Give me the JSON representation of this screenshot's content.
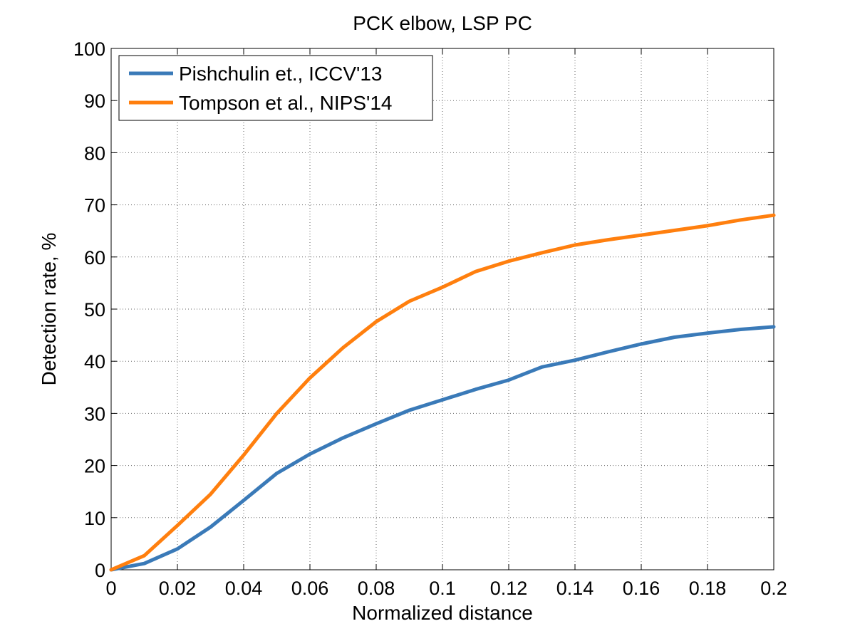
{
  "chart_data": {
    "type": "line",
    "title": "PCK elbow, LSP PC",
    "xlabel": "Normalized distance",
    "ylabel": "Detection rate, %",
    "xlim": [
      0,
      0.2
    ],
    "ylim": [
      0,
      100
    ],
    "xticks": [
      0,
      0.02,
      0.04,
      0.06,
      0.08,
      0.1,
      0.12,
      0.14,
      0.16,
      0.18,
      0.2
    ],
    "xtick_labels": [
      "0",
      "0.02",
      "0.04",
      "0.06",
      "0.08",
      "0.1",
      "0.12",
      "0.14",
      "0.16",
      "0.18",
      "0.2"
    ],
    "yticks": [
      0,
      10,
      20,
      30,
      40,
      50,
      60,
      70,
      80,
      90,
      100
    ],
    "ytick_labels": [
      "0",
      "10",
      "20",
      "30",
      "40",
      "50",
      "60",
      "70",
      "80",
      "90",
      "100"
    ],
    "grid": true,
    "legend_position": "top-left",
    "x": [
      0,
      0.01,
      0.02,
      0.03,
      0.04,
      0.05,
      0.06,
      0.07,
      0.08,
      0.09,
      0.1,
      0.11,
      0.12,
      0.13,
      0.14,
      0.15,
      0.16,
      0.17,
      0.18,
      0.19,
      0.2
    ],
    "series": [
      {
        "name": "Pishchulin et., ICCV'13",
        "color": "#3a7ab8",
        "values": [
          0,
          1.2,
          4.0,
          8.2,
          13.3,
          18.5,
          22.2,
          25.3,
          28.0,
          30.6,
          32.6,
          34.6,
          36.4,
          38.9,
          40.2,
          41.8,
          43.3,
          44.6,
          45.4,
          46.1,
          46.6
        ]
      },
      {
        "name": "Tompson et al., NIPS'14",
        "color": "#ff7f0e",
        "values": [
          0,
          2.7,
          8.5,
          14.5,
          22.0,
          30.0,
          36.8,
          42.6,
          47.6,
          51.5,
          54.2,
          57.2,
          59.2,
          60.8,
          62.3,
          63.3,
          64.2,
          65.1,
          66.0,
          67.1,
          68.0
        ]
      }
    ]
  }
}
